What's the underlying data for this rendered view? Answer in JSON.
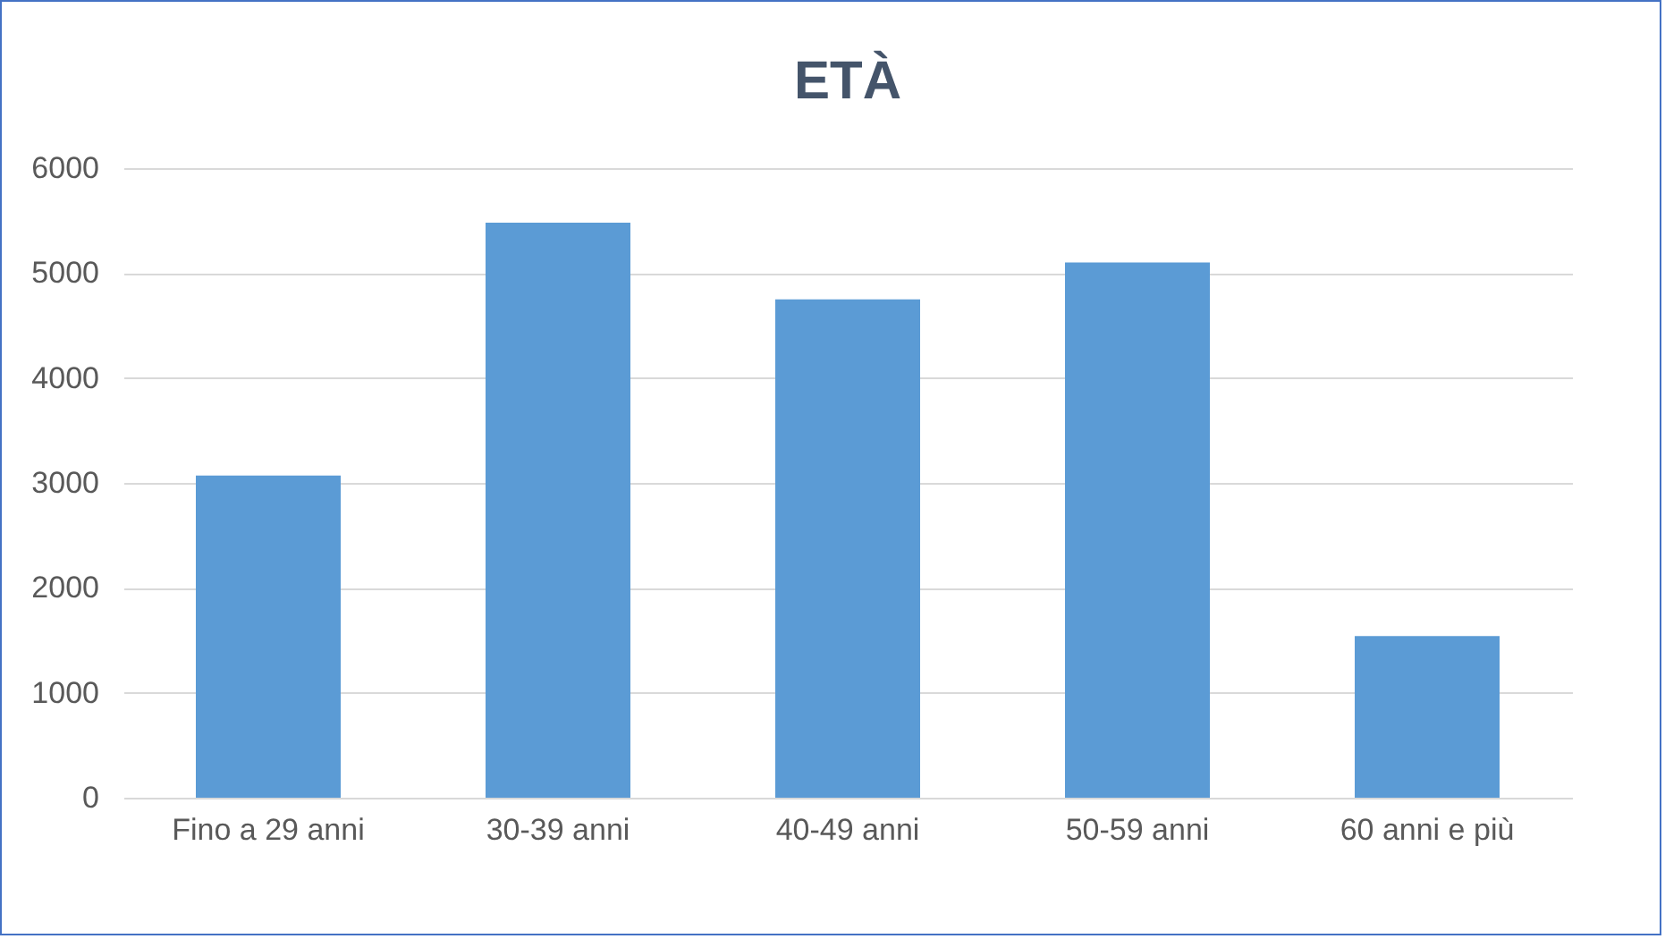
{
  "chart_data": {
    "type": "bar",
    "title": "ETÀ",
    "categories": [
      "Fino a 29 anni",
      "30-39 anni",
      "40-49 anni",
      "50-59 anni",
      "60 anni e più"
    ],
    "values": [
      3070,
      5480,
      4750,
      5100,
      1540
    ],
    "color": "#5b9bd5",
    "ylim": [
      0,
      6000
    ],
    "yticks": [
      0,
      1000,
      2000,
      3000,
      4000,
      5000,
      6000
    ],
    "grid": "y"
  }
}
